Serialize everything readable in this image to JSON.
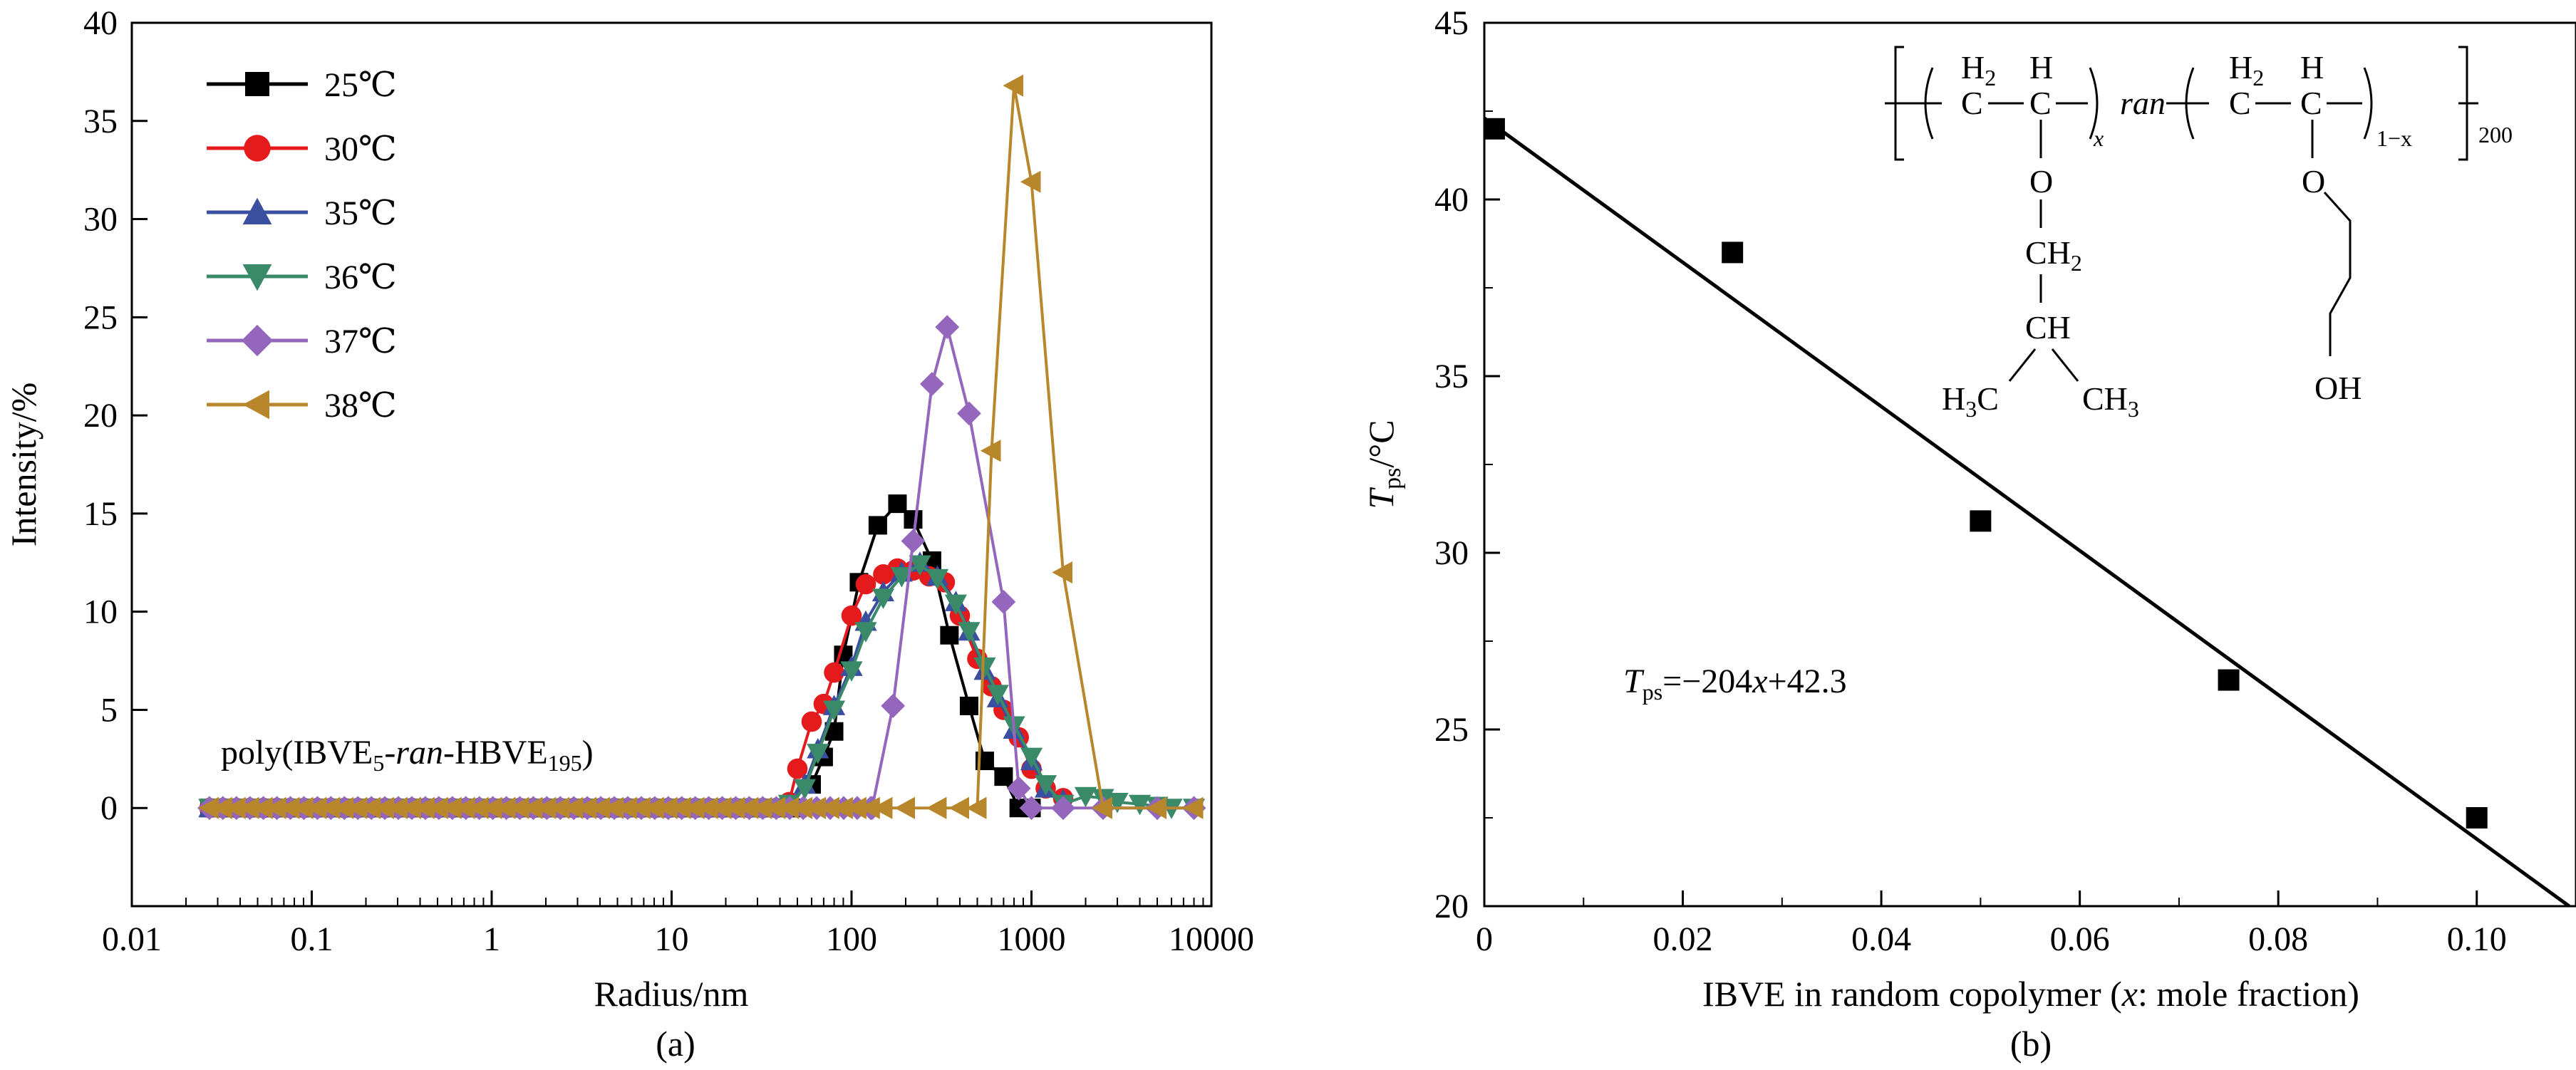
{
  "chart_data": [
    {
      "id": "a",
      "type": "line",
      "panel_label": "(a)",
      "xlabel": "Radius/nm",
      "ylabel": "Intensity/%",
      "x_scale": "log",
      "xlim": [
        0.01,
        10000
      ],
      "ylim": [
        -5,
        40
      ],
      "x_ticks": [
        0.01,
        0.1,
        1,
        10,
        100,
        1000,
        10000
      ],
      "x_tick_labels": [
        "0.01",
        "0.1",
        "1",
        "10",
        "100",
        "1000",
        "10000"
      ],
      "y_ticks": [
        0,
        5,
        10,
        15,
        20,
        25,
        30,
        35,
        40
      ],
      "y_tick_labels": [
        "0",
        "5",
        "10",
        "15",
        "20",
        "25",
        "30",
        "35",
        "40"
      ],
      "annotation": {
        "prefix": "poly(IBVE",
        "sub1": "5",
        "dash": "-",
        "ran": "ran",
        "mid": "-HBVE",
        "sub2": "195",
        "suffix": ")"
      },
      "legend_position": "top-left",
      "series": [
        {
          "name": "25℃",
          "marker": "square",
          "color": "#000000",
          "x": [
            0.027,
            50,
            60,
            70,
            80,
            90,
            110,
            140,
            180,
            220,
            280,
            350,
            450,
            550,
            700,
            850,
            1000
          ],
          "y": [
            0,
            0,
            1.2,
            2.6,
            3.9,
            7.8,
            11.5,
            14.4,
            15.5,
            14.7,
            12.6,
            8.8,
            5.2,
            2.4,
            1.6,
            0,
            0
          ]
        },
        {
          "name": "30℃",
          "marker": "circle",
          "color": "#e41a1c",
          "x": [
            0.027,
            45,
            50,
            60,
            70,
            80,
            100,
            120,
            150,
            180,
            220,
            270,
            330,
            400,
            500,
            600,
            700,
            850,
            1000,
            1200,
            1500
          ],
          "y": [
            0,
            0.3,
            2,
            4.4,
            5.3,
            6.9,
            9.8,
            11.4,
            11.9,
            12.2,
            12.1,
            11.8,
            11.5,
            9.8,
            7.6,
            6.2,
            5.0,
            3.6,
            2.0,
            1.0,
            0.5
          ]
        },
        {
          "name": "35℃",
          "marker": "triangle-up",
          "color": "#3a4fa0",
          "x": [
            0.027,
            45,
            55,
            65,
            80,
            100,
            120,
            150,
            190,
            240,
            300,
            380,
            450,
            550,
            650,
            800,
            1000,
            1200,
            1500
          ],
          "y": [
            0,
            0.2,
            1.2,
            3.0,
            5.2,
            7.2,
            9.5,
            11.0,
            12.0,
            12.5,
            11.8,
            10.5,
            9.0,
            7.0,
            5.6,
            4.0,
            2.4,
            1.0,
            0.4
          ]
        },
        {
          "name": "36℃",
          "marker": "triangle-down",
          "color": "#3a8a6a",
          "x": [
            0.027,
            45,
            55,
            65,
            80,
            100,
            120,
            150,
            190,
            240,
            300,
            380,
            450,
            550,
            650,
            800,
            1000,
            1200,
            1500,
            2000,
            2500,
            3000,
            4000,
            5000,
            6000,
            8000
          ],
          "y": [
            0,
            0.2,
            1.0,
            2.8,
            5.0,
            7.0,
            9.0,
            10.7,
            11.8,
            12.4,
            11.7,
            10.4,
            9.0,
            7.2,
            5.8,
            4.2,
            2.6,
            1.2,
            0.2,
            0.6,
            0.5,
            0.3,
            0.2,
            0.1,
            0,
            0
          ]
        },
        {
          "name": "37℃",
          "marker": "diamond",
          "color": "#9467bd",
          "x": [
            0.027,
            130,
            170,
            220,
            280,
            340,
            450,
            700,
            850,
            1000,
            1500,
            2500,
            5000,
            8000
          ],
          "y": [
            0,
            0,
            5.2,
            13.6,
            21.6,
            24.5,
            20.1,
            10.5,
            1.0,
            0,
            0,
            0,
            0,
            0
          ]
        },
        {
          "name": "38℃",
          "marker": "triangle-left",
          "color": "#b8862b",
          "x": [
            0.027,
            150,
            200,
            300,
            400,
            500,
            600,
            800,
            1000,
            1500,
            2500,
            5000,
            8000
          ],
          "y": [
            0,
            0,
            0,
            0,
            0,
            0,
            18.2,
            36.8,
            31.9,
            12.0,
            0,
            0,
            0
          ]
        }
      ]
    },
    {
      "id": "b",
      "type": "scatter",
      "panel_label": "(b)",
      "xlabel": {
        "prefix": "IBVE in random copolymer (",
        "var": "x",
        "suffix": ": mole fraction)"
      },
      "ylabel": {
        "main": "T",
        "sub": "ps",
        "unit": "/°C"
      },
      "xlim": [
        0,
        0.11
      ],
      "ylim": [
        20,
        45
      ],
      "x_ticks": [
        0,
        0.02,
        0.04,
        0.06,
        0.08,
        0.1
      ],
      "x_tick_labels": [
        "0",
        "0.02",
        "0.04",
        "0.06",
        "0.08",
        "0.10"
      ],
      "y_ticks": [
        20,
        25,
        30,
        35,
        40,
        45
      ],
      "y_tick_labels": [
        "20",
        "25",
        "30",
        "35",
        "40",
        "45"
      ],
      "points": {
        "x": [
          0.001,
          0.025,
          0.05,
          0.075,
          0.1
        ],
        "y": [
          42.0,
          38.5,
          30.9,
          26.4,
          22.5
        ]
      },
      "fit": {
        "slope": -204,
        "intercept": 42.3
      },
      "equation": {
        "T": "T",
        "sub": "ps",
        "rest1": "=−204",
        "x": "x",
        "rest2": "+42.3"
      },
      "structure": {
        "unit1": {
          "h2": "H",
          "h2sub": "2",
          "h": "H",
          "c": "C",
          "o": "O",
          "sub": "x"
        },
        "ran": "ran",
        "unit2": {
          "h2": "H",
          "h2sub": "2",
          "h": "H",
          "c": "C",
          "o": "O",
          "sub": "1−x"
        },
        "degree": "200",
        "ch2": {
          "main": "CH",
          "sub": "2"
        },
        "ch": "CH",
        "h3c": {
          "main": "H",
          "sub": "3",
          "tail": "C"
        },
        "ch3": {
          "main": "CH",
          "sub": "3"
        },
        "oh": "OH"
      }
    }
  ]
}
